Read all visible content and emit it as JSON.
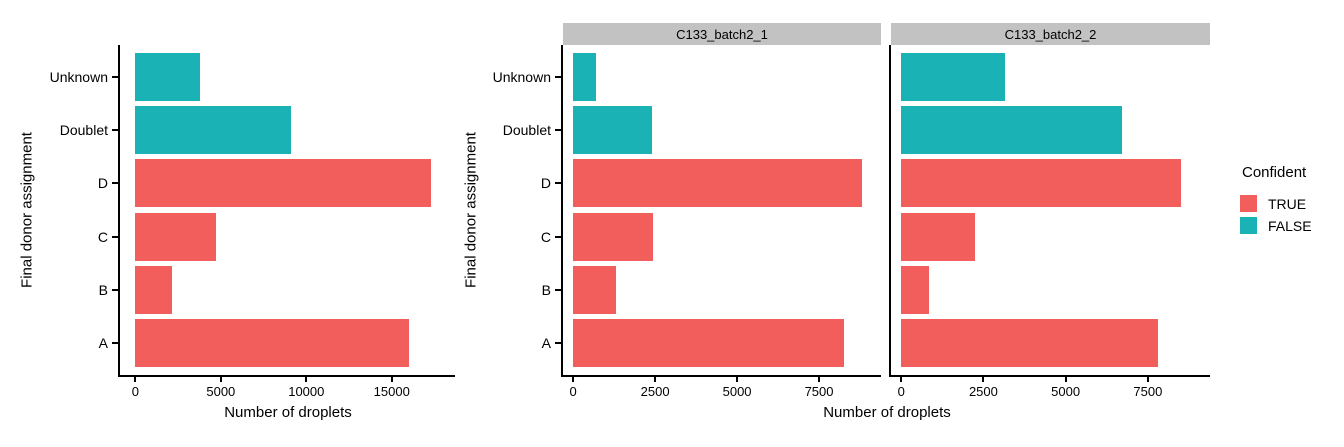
{
  "figure": {
    "x_axis_title": "Number of droplets",
    "y_axis_title": "Final donor assignment"
  },
  "colors": {
    "confident_true": "#F25E5B",
    "confident_false": "#1AB2B5",
    "strip_background": "#C2C2C2",
    "axis_line": "#000000"
  },
  "legend": {
    "title": "Confident",
    "items": [
      {
        "label": "TRUE",
        "color": "#F25E5B"
      },
      {
        "label": "FALSE",
        "color": "#1AB2B5"
      }
    ]
  },
  "chart_data": [
    {
      "type": "bar",
      "orientation": "horizontal",
      "title": "",
      "xlabel": "Number of droplets",
      "ylabel": "Final donor assignment",
      "categories_top_to_bottom": [
        "Unknown",
        "Doublet",
        "D",
        "C",
        "B",
        "A"
      ],
      "values": [
        3800,
        9100,
        17300,
        4700,
        2150,
        16000
      ],
      "confident": [
        false,
        false,
        true,
        true,
        true,
        true
      ],
      "xticks": [
        0,
        5000,
        10000,
        15000
      ],
      "xlim": [
        -900,
        18700
      ],
      "grid": false,
      "legend_position": "none"
    },
    {
      "type": "bar",
      "orientation": "horizontal",
      "title": "C133_batch2_1",
      "xlabel": "Number of droplets",
      "ylabel": "Final donor assignment",
      "categories_top_to_bottom": [
        "Unknown",
        "Doublet",
        "D",
        "C",
        "B",
        "A"
      ],
      "values": [
        700,
        2400,
        8800,
        2450,
        1300,
        8250
      ],
      "confident": [
        false,
        false,
        true,
        true,
        true,
        true
      ],
      "xticks": [
        0,
        2500,
        5000,
        7500
      ],
      "xlim": [
        -310,
        9390
      ],
      "grid": false,
      "legend_position": "right"
    },
    {
      "type": "bar",
      "orientation": "horizontal",
      "title": "C133_batch2_2",
      "xlabel": "Number of droplets",
      "ylabel": "Final donor assignment",
      "categories_top_to_bottom": [
        "Unknown",
        "Doublet",
        "D",
        "C",
        "B",
        "A"
      ],
      "values": [
        3150,
        6700,
        8500,
        2250,
        850,
        7800
      ],
      "confident": [
        false,
        false,
        true,
        true,
        true,
        true
      ],
      "xticks": [
        0,
        2500,
        5000,
        7500
      ],
      "xlim": [
        -310,
        9390
      ],
      "grid": false,
      "legend_position": "right"
    }
  ]
}
